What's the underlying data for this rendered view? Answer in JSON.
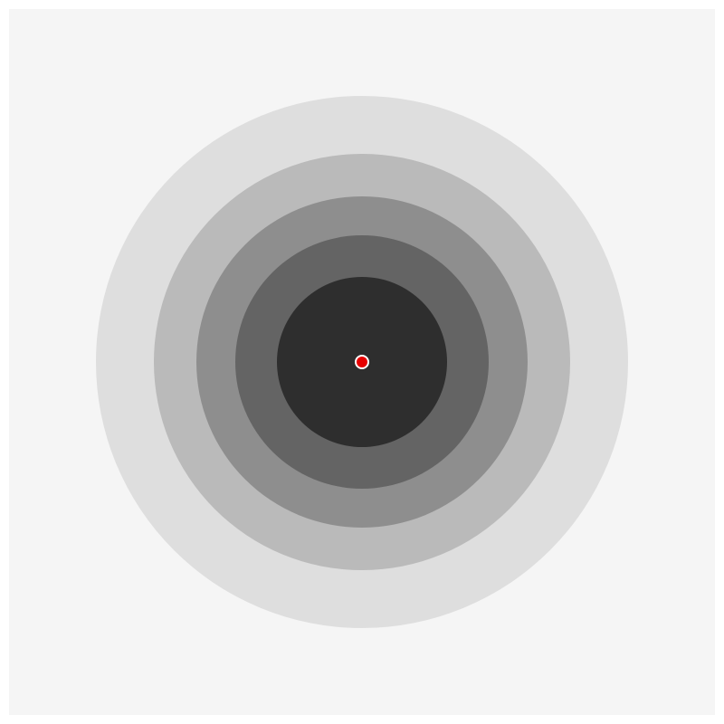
{
  "colors": {
    "page": "#ffffff",
    "panel": "#f5f5f5",
    "rings": [
      "#dedede",
      "#bababa",
      "#8e8e8e",
      "#646464",
      "#2e2e2e"
    ],
    "marker_fill": "#e60000",
    "marker_stroke": "#ffffff"
  },
  "icons": {
    "marker": "center-dot-icon"
  }
}
